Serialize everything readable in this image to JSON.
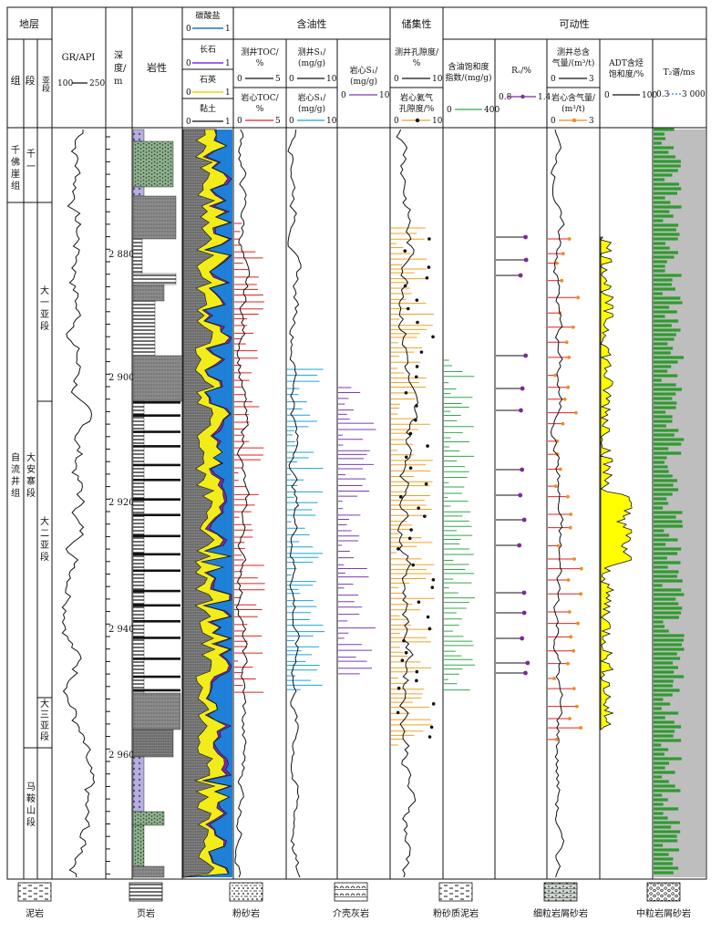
{
  "header": {
    "strata": "地层",
    "group": "组",
    "segment": "段",
    "subsegment": "亚段",
    "gr_title": "GR/API",
    "gr_range": [
      "100",
      "250"
    ],
    "depth_title": [
      "深",
      "度/",
      "m"
    ],
    "lithology": "岩性",
    "minerals": [
      {
        "name": "碳酸盐",
        "range": [
          "0",
          "1"
        ],
        "color": "#1f6fe0"
      },
      {
        "name": "长石",
        "range": [
          "0",
          "1"
        ],
        "color": "#8a2be2"
      },
      {
        "name": "石英",
        "range": [
          "0",
          "1"
        ],
        "color": "#e8d800"
      },
      {
        "name": "黏土",
        "range": [
          "0",
          "1"
        ],
        "color": "#333333"
      }
    ],
    "oil_group": "含油性",
    "toc_log": [
      "测井TOC/",
      "%"
    ],
    "toc_log_range": [
      "0",
      "5"
    ],
    "toc_core": [
      "岩心TOC/",
      "%"
    ],
    "toc_core_range": [
      "0",
      "5"
    ],
    "s1_log": [
      "测井S₁/",
      "(mg/g)"
    ],
    "s1_log_range": [
      "0",
      "10"
    ],
    "s1_core": [
      "岩心S₁/",
      "(mg/g)"
    ],
    "s1_core_range": [
      "0",
      "10"
    ],
    "s1_core2": [
      "岩心S₁/",
      "(mg/g)"
    ],
    "s1_core2_range": [
      "0",
      "10"
    ],
    "storage_group": "储集性",
    "por_log": [
      "测井孔隙度/",
      "%"
    ],
    "por_log_range": [
      "0",
      "10"
    ],
    "por_core": [
      "岩心氦气",
      "孔隙度/%"
    ],
    "por_core_range": [
      "0",
      "10"
    ],
    "mobility_group": "可动性",
    "oil_sat_index": [
      "含油饱和度",
      "指数/(mg/g)"
    ],
    "oil_sat_range": [
      "0",
      "400"
    ],
    "ro": "Rₒ/%",
    "ro_range": [
      "0.8",
      "1.4"
    ],
    "gas_log": [
      "测井总含",
      "气量/(m³/t)"
    ],
    "gas_log_range": [
      "0",
      "3"
    ],
    "gas_core": [
      "岩心含气量/",
      "(m³/t)"
    ],
    "gas_core_range": [
      "0",
      "3"
    ],
    "adt": [
      "ADT含烃",
      "饱和度/%"
    ],
    "adt_range": [
      "0",
      "100"
    ],
    "t2": "T₂谱/ms",
    "t2_range": [
      "0.3",
      "3 000"
    ]
  },
  "strata": {
    "groups": [
      {
        "name": "千\n佛\n崖\n组"
      },
      {
        "name": "自\n流\n井\n组"
      }
    ],
    "segments": [
      {
        "name": "千\n一"
      },
      {
        "name": "大\n安\n寨\n段"
      },
      {
        "name": "马\n鞍\n山\n段"
      }
    ],
    "subsegments": [
      {
        "name": "大\n一\n亚\n段"
      },
      {
        "name": "大\n二\n亚\n段"
      },
      {
        "name": "大\n三\n亚\n段"
      }
    ]
  },
  "depth_ticks": [
    "2 880",
    "2 900",
    "2 920",
    "2 940",
    "2 960"
  ],
  "legend": [
    {
      "name": "泥岩",
      "pattern": "mudstone"
    },
    {
      "name": "页岩",
      "pattern": "shale"
    },
    {
      "name": "粉砂岩",
      "pattern": "siltstone"
    },
    {
      "name": "介壳灰岩",
      "pattern": "shell-limestone"
    },
    {
      "name": "粉砂质泥岩",
      "pattern": "silty-mudstone"
    },
    {
      "name": "细粒岩屑砂岩",
      "pattern": "fine-sandstone"
    },
    {
      "name": "中粒岩屑砂岩",
      "pattern": "medium-sandstone"
    }
  ],
  "colors": {
    "gr": "#111111",
    "toc_core": "#e02020",
    "s1": "#1aa3d9",
    "s1_core": "#7a3ab8",
    "porosity": "#f0a020",
    "oil_sat": "#2faa4a",
    "ro": "#7a2a9a",
    "gas_core": "#f08a20",
    "adt": "#ffff00",
    "t2_bg": "#b8b8b8",
    "t2_fg": "#2f9a2f"
  }
}
